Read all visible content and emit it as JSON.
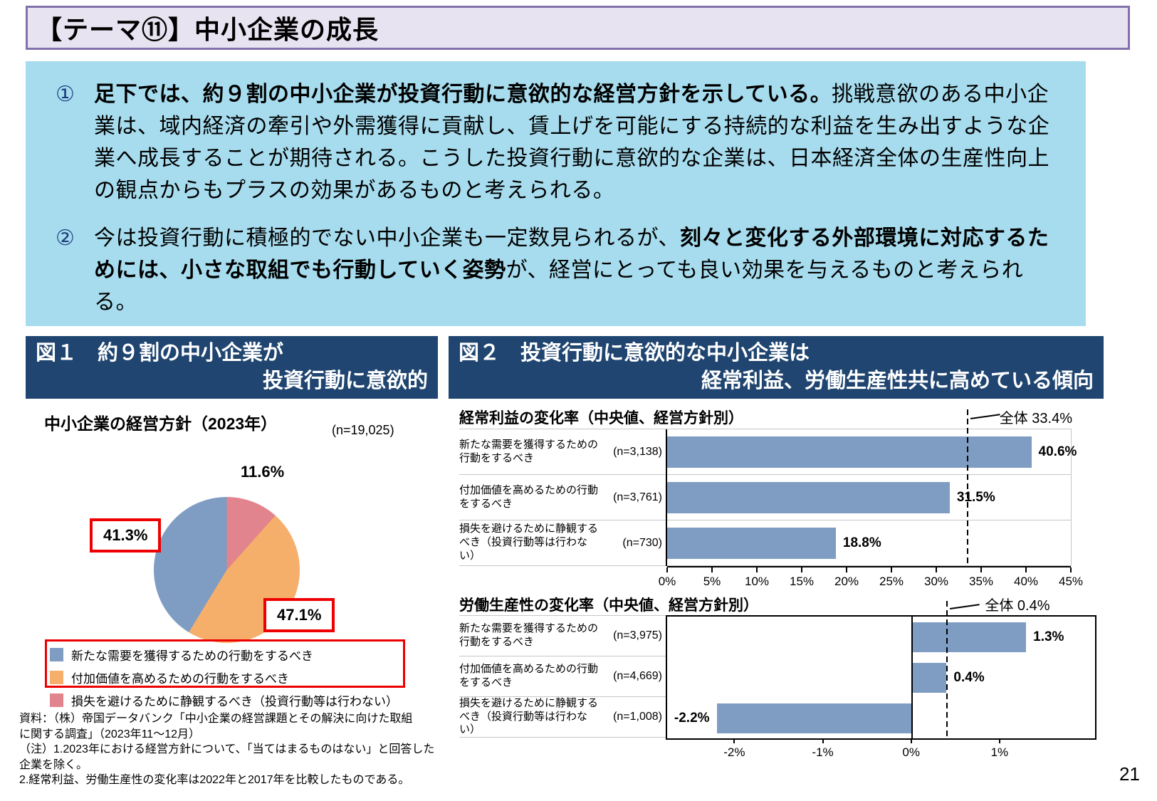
{
  "page": {
    "number": "21"
  },
  "header": {
    "title": "【テーマ⑪】中小企業の成長"
  },
  "summary": {
    "point1": {
      "num": "①",
      "bold": "足下では、約９割の中小企業が投資行動に意欲的な経営方針を示している。",
      "rest": "挑戦意欲のある中小企業は、域内経済の牽引や外需獲得に貢献し、賃上げを可能にする持続的な利益を生み出すような企業へ成長することが期待される。こうした投資行動に意欲的な企業は、日本経済全体の生産性向上の観点からもプラスの効果があるものと考えられる。"
    },
    "point2": {
      "num": "②",
      "pre": "今は投資行動に積極的でない中小企業も一定数見られるが、",
      "bold": "刻々と変化する外部環境に対応するためには、小さな取組でも行動していく姿勢",
      "post": "が、経営にとっても良い効果を与えるものと考えられる。"
    }
  },
  "fig1": {
    "header_line1": "図１　約９割の中小企業が",
    "header_line2": "投資行動に意欲的",
    "legend": [
      {
        "label": "新たな需要を獲得するための行動をするべき",
        "color": "#7F9DC3"
      },
      {
        "label": "付加価値を高めるための行動をするべき",
        "color": "#F5AF6B"
      },
      {
        "label": "損失を避けるために静観するべき（投資行動等は行わない）",
        "color": "#E2848D"
      }
    ],
    "source_lines": [
      "資料：（株）帝国データバンク「中小企業の経営課題とその解決に向けた取組",
      "に関する調査」（2023年11～12月）",
      "（注）1.2023年における経営方針について、「当てはまるものはない」と回答した",
      "企業を除く。",
      "2.経常利益、労働生産性の変化率は2022年と2017年を比較したものである。"
    ]
  },
  "fig2": {
    "header_line1": "図２　投資行動に意欲的な中小企業は",
    "header_line2": "経常利益、労働生産性共に高めている傾向"
  },
  "chart_data": [
    {
      "id": "pie-management-policy",
      "type": "pie",
      "title": "中小企業の経営方針（2023年）",
      "sample_size": "(n=19,025)",
      "start_angle": 0,
      "direction": "clockwise",
      "slices": [
        {
          "label": "損失を避けるために静観するべき（投資行動等は行わない）",
          "value": 11.6,
          "display": "11.6%",
          "color": "#E2848D"
        },
        {
          "label": "付加価値を高めるための行動をするべき",
          "value": 47.1,
          "display": "47.1%",
          "color": "#F5AF6B"
        },
        {
          "label": "新たな需要を獲得するための行動をするべき",
          "value": 41.3,
          "display": "41.3%",
          "color": "#7F9DC3"
        }
      ]
    },
    {
      "id": "ordinary-profit-change",
      "type": "bar",
      "orientation": "horizontal",
      "title": "経常利益の変化率（中央値、経営方針別）",
      "bar_color": "#7F9DC3",
      "overall": {
        "label": "全体",
        "value": 33.4,
        "display": "全体  33.4%"
      },
      "xlim": [
        0,
        45
      ],
      "xticks": [
        {
          "value": 0,
          "label": "0%"
        },
        {
          "value": 5,
          "label": "5%"
        },
        {
          "value": 10,
          "label": "10%"
        },
        {
          "value": 15,
          "label": "15%"
        },
        {
          "value": 20,
          "label": "20%"
        },
        {
          "value": 25,
          "label": "25%"
        },
        {
          "value": 30,
          "label": "30%"
        },
        {
          "value": 35,
          "label": "35%"
        },
        {
          "value": 40,
          "label": "40%"
        },
        {
          "value": 45,
          "label": "45%"
        }
      ],
      "categories": [
        {
          "label": "新たな需要を獲得するための\n行動をするべき",
          "n": "(n=3,138)",
          "value": 40.6,
          "display": "40.6%"
        },
        {
          "label": "付加価値を高めるための行動\nをするべき",
          "n": "(n=3,761)",
          "value": 31.5,
          "display": "31.5%"
        },
        {
          "label": "損失を避けるために静観する\nべき（投資行動等は行わな\nい）",
          "n": "(n=730)",
          "value": 18.8,
          "display": "18.8%"
        }
      ]
    },
    {
      "id": "labor-productivity-change",
      "type": "bar",
      "orientation": "horizontal",
      "title": "労働生産性の変化率（中央値、経営方針別）",
      "bar_color": "#7F9DC3",
      "overall": {
        "label": "全体",
        "value": 0.4,
        "display": "全体  0.4%"
      },
      "xlim": [
        -2.76,
        2.08
      ],
      "xticks": [
        {
          "value": -2,
          "label": "-2%"
        },
        {
          "value": -1,
          "label": "-1%"
        },
        {
          "value": 0,
          "label": "0%"
        },
        {
          "value": 1,
          "label": "1%"
        }
      ],
      "categories": [
        {
          "label": "新たな需要を獲得するための\n行動をするべき",
          "n": "(n=3,975)",
          "value": 1.3,
          "display": "1.3%"
        },
        {
          "label": "付加価値を高めるための行動\nをするべき",
          "n": "(n=4,669)",
          "value": 0.4,
          "display": "0.4%"
        },
        {
          "label": "損失を避けるために静観する\nべき（投資行動等は行わな\nい）",
          "n": "(n=1,008)",
          "value": -2.2,
          "display": "-2.2%"
        }
      ]
    }
  ],
  "colors": {
    "header_navy": "#1F4570",
    "summary_bg": "#A6DCEE",
    "titlebar_bg": "#E7E3F0",
    "titlebar_border": "#8371AC",
    "annotation_red": "#EE0000",
    "bar_blue": "#7F9DC3",
    "pie_orange": "#F5AF6B",
    "pie_pink": "#E2848D"
  }
}
